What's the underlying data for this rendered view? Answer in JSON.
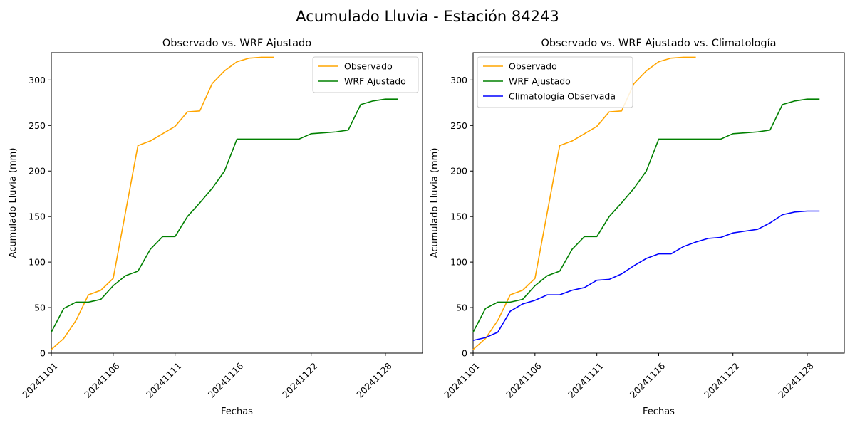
{
  "suptitle": "Acumulado Lluvia - Estación 84243",
  "colors": {
    "Observado": "#ffa500",
    "WRF Ajustado": "#008000",
    "Climatología Observada": "#0000ff",
    "axis": "#000000",
    "background": "#ffffff"
  },
  "chart_data": [
    {
      "type": "line",
      "title": "Observado vs. WRF Ajustado",
      "xlabel": "Fechas",
      "ylabel": "Acumulado Lluvia (mm)",
      "xlim": [
        1,
        31
      ],
      "ylim": [
        0,
        330
      ],
      "xticks": [
        1,
        6,
        11,
        16,
        22,
        28
      ],
      "xtick_labels": [
        "20241101",
        "20241106",
        "20241111",
        "20241116",
        "20241122",
        "20241128"
      ],
      "yticks": [
        0,
        50,
        100,
        150,
        200,
        250,
        300
      ],
      "ytick_labels": [
        "0",
        "50",
        "100",
        "150",
        "200",
        "250",
        "300"
      ],
      "grid": false,
      "legend": "top-right",
      "series": [
        {
          "name": "Observado",
          "x": [
            1,
            2,
            3,
            4,
            5,
            6,
            7,
            8,
            9,
            10,
            11,
            12,
            13,
            14,
            15,
            16,
            17,
            18,
            19
          ],
          "values": [
            4,
            16,
            36,
            64,
            69,
            82,
            155,
            228,
            233,
            241,
            249,
            265,
            266,
            296,
            310,
            320,
            324,
            325,
            325
          ]
        },
        {
          "name": "WRF Ajustado",
          "x": [
            1,
            2,
            3,
            4,
            5,
            6,
            7,
            8,
            9,
            10,
            11,
            12,
            13,
            14,
            15,
            16,
            17,
            18,
            19,
            20,
            21,
            22,
            23,
            24,
            25,
            26,
            27,
            28,
            29
          ],
          "values": [
            23,
            49,
            56,
            56,
            59,
            74,
            85,
            90,
            114,
            128,
            128,
            150,
            165,
            181,
            200,
            235,
            235,
            235,
            235,
            235,
            235,
            241,
            242,
            243,
            245,
            273,
            277,
            279,
            279
          ]
        }
      ]
    },
    {
      "type": "line",
      "title": "Observado vs. WRF Ajustado vs. Climatología",
      "xlabel": "Fechas",
      "ylabel": "Acumulado Lluvia (mm)",
      "xlim": [
        1,
        31
      ],
      "ylim": [
        0,
        330
      ],
      "xticks": [
        1,
        6,
        11,
        16,
        22,
        28
      ],
      "xtick_labels": [
        "20241101",
        "20241106",
        "20241111",
        "20241116",
        "20241122",
        "20241128"
      ],
      "yticks": [
        0,
        50,
        100,
        150,
        200,
        250,
        300
      ],
      "ytick_labels": [
        "0",
        "50",
        "100",
        "150",
        "200",
        "250",
        "300"
      ],
      "grid": false,
      "legend": "top-left",
      "series": [
        {
          "name": "Observado",
          "x": [
            1,
            2,
            3,
            4,
            5,
            6,
            7,
            8,
            9,
            10,
            11,
            12,
            13,
            14,
            15,
            16,
            17,
            18,
            19
          ],
          "values": [
            4,
            16,
            36,
            64,
            69,
            82,
            155,
            228,
            233,
            241,
            249,
            265,
            266,
            296,
            310,
            320,
            324,
            325,
            325
          ]
        },
        {
          "name": "WRF Ajustado",
          "x": [
            1,
            2,
            3,
            4,
            5,
            6,
            7,
            8,
            9,
            10,
            11,
            12,
            13,
            14,
            15,
            16,
            17,
            18,
            19,
            20,
            21,
            22,
            23,
            24,
            25,
            26,
            27,
            28,
            29
          ],
          "values": [
            23,
            49,
            56,
            56,
            59,
            74,
            85,
            90,
            114,
            128,
            128,
            150,
            165,
            181,
            200,
            235,
            235,
            235,
            235,
            235,
            235,
            241,
            242,
            243,
            245,
            273,
            277,
            279,
            279
          ]
        },
        {
          "name": "Climatología Observada",
          "x": [
            1,
            2,
            3,
            4,
            5,
            6,
            7,
            8,
            9,
            10,
            11,
            12,
            13,
            14,
            15,
            16,
            17,
            18,
            19,
            20,
            21,
            22,
            23,
            24,
            25,
            26,
            27,
            28,
            29
          ],
          "values": [
            14,
            17,
            23,
            46,
            54,
            58,
            64,
            64,
            69,
            72,
            80,
            81,
            87,
            96,
            104,
            109,
            109,
            117,
            122,
            126,
            127,
            132,
            134,
            136,
            143,
            152,
            155,
            156,
            156
          ]
        }
      ]
    }
  ]
}
